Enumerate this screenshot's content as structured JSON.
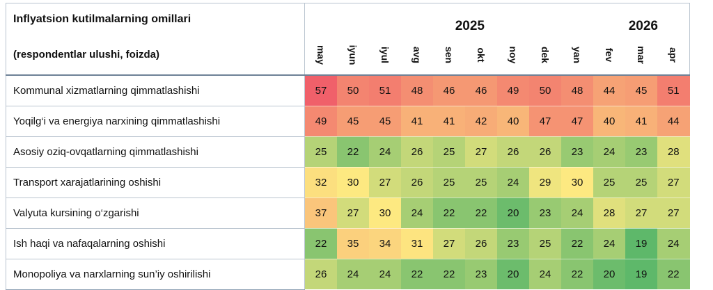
{
  "table_data": {
    "title": "Inflyatsion kutilmalarning omillari",
    "subtitle": "(respondentlar ulushi, foizda)",
    "years": [
      {
        "label": "2025",
        "span": 8
      },
      {
        "label": "2026",
        "span": 4
      }
    ],
    "months": [
      "may",
      "iyun",
      "iyul",
      "avg",
      "sen",
      "okt",
      "noy",
      "dek",
      "yan",
      "fev",
      "mar",
      "apr"
    ],
    "rows": [
      {
        "label": "Kommunal xizmatlarning qimmatlashishi",
        "values": [
          57,
          50,
          51,
          48,
          46,
          46,
          49,
          50,
          48,
          44,
          45,
          51
        ]
      },
      {
        "label": "Yoqilg‘i va energiya narxining qimmatlashishi",
        "values": [
          49,
          45,
          45,
          41,
          41,
          42,
          40,
          47,
          47,
          40,
          41,
          44
        ]
      },
      {
        "label": "Asosiy oziq-ovqatlarning qimmatlashishi",
        "values": [
          25,
          22,
          24,
          26,
          25,
          27,
          26,
          26,
          23,
          24,
          23,
          28
        ]
      },
      {
        "label": "Transport xarajatlarining oshishi",
        "values": [
          32,
          30,
          27,
          26,
          25,
          25,
          24,
          29,
          30,
          25,
          25,
          27
        ]
      },
      {
        "label": "Valyuta kursining o‘zgarishi",
        "values": [
          37,
          27,
          30,
          24,
          22,
          22,
          20,
          23,
          24,
          28,
          27,
          27
        ]
      },
      {
        "label": "Ish haqi va nafaqalarning oshishi",
        "values": [
          22,
          35,
          34,
          31,
          27,
          26,
          23,
          25,
          22,
          24,
          19,
          24
        ]
      },
      {
        "label": "Monopoliya va narxlarning sun’iy oshirilishi",
        "values": [
          26,
          24,
          24,
          22,
          22,
          23,
          20,
          24,
          22,
          20,
          19,
          22
        ]
      }
    ]
  },
  "chart_data": {
    "type": "heatmap",
    "title": "Inflyatsion kutilmalarning omillari",
    "subtitle": "(respondentlar ulushi, foizda)",
    "x_groups": [
      "2025",
      "2026"
    ],
    "x": [
      "may",
      "iyun",
      "iyul",
      "avg",
      "sen",
      "okt",
      "noy",
      "dek",
      "yan",
      "fev",
      "mar",
      "apr"
    ],
    "y": [
      "Kommunal xizmatlarning qimmatlashishi",
      "Yoqilg‘i va energiya narxining qimmatlashishi",
      "Asosiy oziq-ovqatlarning qimmatlashishi",
      "Transport xarajatlarining oshishi",
      "Valyuta kursining o‘zgarishi",
      "Ish haqi va nafaqalarning oshishi",
      "Monopoliya va narxlarning sun’iy oshirilishi"
    ],
    "values": [
      [
        57,
        50,
        51,
        48,
        46,
        46,
        49,
        50,
        48,
        44,
        45,
        51
      ],
      [
        49,
        45,
        45,
        41,
        41,
        42,
        40,
        47,
        47,
        40,
        41,
        44
      ],
      [
        25,
        22,
        24,
        26,
        25,
        27,
        26,
        26,
        23,
        24,
        23,
        28
      ],
      [
        32,
        30,
        27,
        26,
        25,
        25,
        24,
        29,
        30,
        25,
        25,
        27
      ],
      [
        37,
        27,
        30,
        24,
        22,
        22,
        20,
        23,
        24,
        28,
        27,
        27
      ],
      [
        22,
        35,
        34,
        31,
        27,
        26,
        23,
        25,
        22,
        24,
        19,
        24
      ],
      [
        26,
        24,
        24,
        22,
        22,
        23,
        20,
        24,
        22,
        20,
        19,
        22
      ]
    ],
    "colorscale": {
      "low": "#5eb86a",
      "mid": "#fde981",
      "high": "#f0606a"
    }
  }
}
